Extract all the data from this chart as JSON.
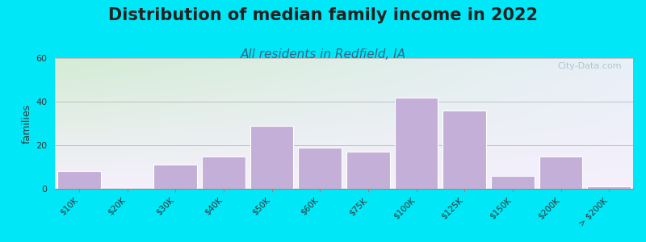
{
  "title": "Distribution of median family income in 2022",
  "subtitle": "All residents in Redfield, IA",
  "ylabel": "families",
  "categories": [
    "$10K",
    "$20K",
    "$30K",
    "$40K",
    "$50K",
    "$60K",
    "$75K",
    "$100K",
    "$125K",
    "$150K",
    "$200K",
    "> $200K"
  ],
  "values": [
    8,
    0,
    11,
    15,
    29,
    19,
    17,
    42,
    36,
    6,
    15,
    1
  ],
  "bar_color": "#c4afd8",
  "bar_edge_color": "#ffffff",
  "ylim": [
    0,
    60
  ],
  "yticks": [
    0,
    20,
    40,
    60
  ],
  "background_outer": "#00e8f8",
  "grad_top_left": "#d4ecd4",
  "grad_top_right": "#e8f0f8",
  "grad_bottom": "#f5f0fc",
  "title_fontsize": 15,
  "subtitle_fontsize": 11,
  "title_color": "#222222",
  "subtitle_color": "#336688",
  "watermark_text": "City-Data.com",
  "watermark_color": "#aabbc8",
  "tick_label_fontsize": 7.5
}
